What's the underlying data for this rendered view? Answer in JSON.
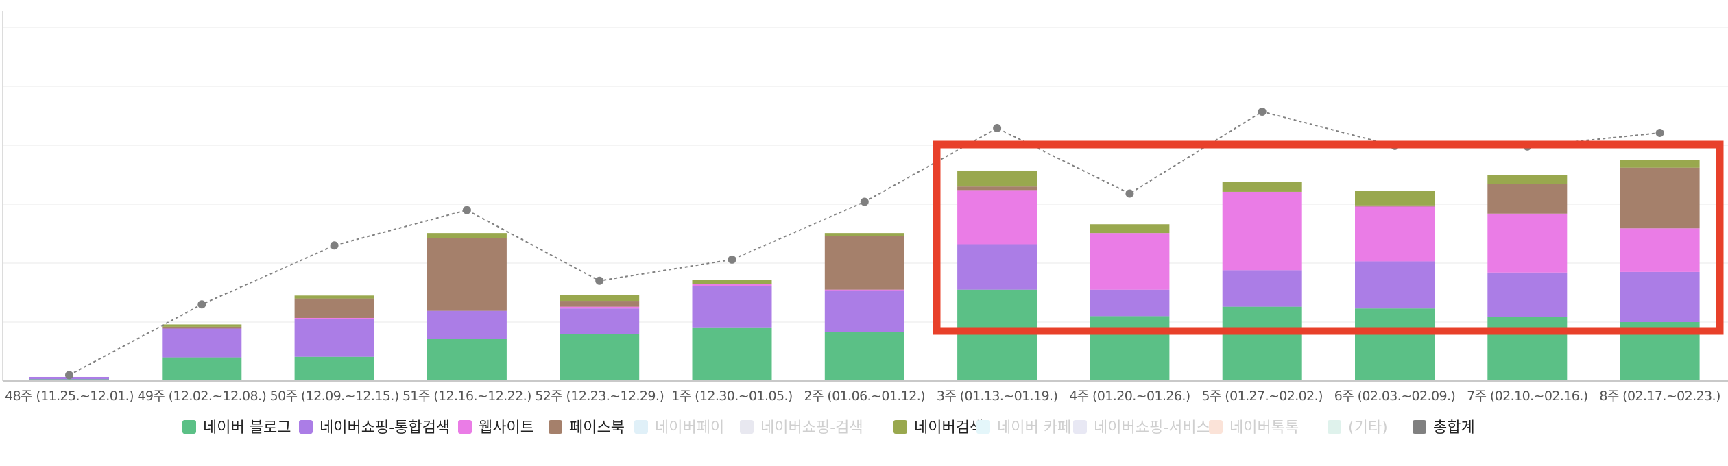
{
  "chart_data": {
    "type": "bar",
    "stacked": true,
    "categories": [
      "48주 (11.25.~12.01.)",
      "49주 (12.02.~12.08.)",
      "50주 (12.09.~12.15.)",
      "51주 (12.16.~12.22.)",
      "52주 (12.23.~12.29.)",
      "1주 (12.30.~01.05.)",
      "2주 (01.06.~01.12.)",
      "3주 (01.13.~01.19.)",
      "4주 (01.20.~01.26.)",
      "5주 (01.27.~02.02.)",
      "6주 (02.03.~02.09.)",
      "7주 (02.10.~02.16.)",
      "8주 (02.17.~02.23.)"
    ],
    "ylim": [
      0,
      6
    ],
    "grid": true,
    "legend_position": "bottom",
    "series": [
      {
        "name": "네이버 블로그",
        "color": "#5bc086",
        "active": true,
        "kind": "bar",
        "values": [
          0.03,
          0.4,
          0.41,
          0.72,
          0.8,
          0.91,
          0.83,
          1.55,
          1.1,
          1.26,
          1.23,
          1.09,
          1.0
        ]
      },
      {
        "name": "네이버쇼핑-통합검색",
        "color": "#ab7de6",
        "active": true,
        "kind": "bar",
        "values": [
          0.04,
          0.49,
          0.65,
          0.47,
          0.43,
          0.7,
          0.71,
          0.77,
          0.45,
          0.62,
          0.8,
          0.75,
          0.85
        ]
      },
      {
        "name": "웹사이트",
        "color": "#ea7ce6",
        "active": true,
        "kind": "bar",
        "values": [
          0.0,
          0.0,
          0.01,
          0.0,
          0.03,
          0.03,
          0.01,
          0.92,
          0.96,
          1.33,
          0.93,
          1.0,
          0.74
        ]
      },
      {
        "name": "페이스북",
        "color": "#a5806b",
        "active": true,
        "kind": "bar",
        "values": [
          0.0,
          0.03,
          0.33,
          1.24,
          0.1,
          0.0,
          0.91,
          0.06,
          0.0,
          0.0,
          0.02,
          0.5,
          1.03
        ]
      },
      {
        "name": "네이버페이",
        "color": "#e0f0f8",
        "active": false,
        "kind": "bar",
        "values": [
          0,
          0,
          0,
          0,
          0,
          0,
          0,
          0,
          0,
          0,
          0,
          0,
          0
        ]
      },
      {
        "name": "네이버쇼핑-검색",
        "color": "#e8e8f0",
        "active": false,
        "kind": "bar",
        "values": [
          0,
          0,
          0,
          0,
          0,
          0,
          0,
          0,
          0,
          0,
          0,
          0,
          0
        ]
      },
      {
        "name": "네이버검색",
        "color": "#99a84e",
        "active": true,
        "kind": "bar",
        "values": [
          0.0,
          0.04,
          0.05,
          0.08,
          0.1,
          0.08,
          0.05,
          0.27,
          0.15,
          0.17,
          0.25,
          0.16,
          0.13
        ]
      },
      {
        "name": "네이버 카페",
        "color": "#e4f6fa",
        "active": false,
        "kind": "bar",
        "values": [
          0,
          0,
          0,
          0,
          0,
          0,
          0,
          0,
          0,
          0,
          0,
          0,
          0
        ]
      },
      {
        "name": "네이버쇼핑-서비스",
        "color": "#e8e8f4",
        "active": false,
        "kind": "bar",
        "values": [
          0,
          0,
          0,
          0,
          0,
          0,
          0,
          0,
          0,
          0,
          0,
          0,
          0
        ]
      },
      {
        "name": "네이버톡톡",
        "color": "#fbe3d8",
        "active": false,
        "kind": "bar",
        "values": [
          0,
          0,
          0,
          0,
          0,
          0,
          0,
          0,
          0,
          0,
          0,
          0,
          0
        ]
      },
      {
        "name": "(기타)",
        "color": "#dff2ec",
        "active": false,
        "kind": "bar",
        "values": [
          0,
          0,
          0,
          0,
          0,
          0,
          0,
          0,
          0,
          0,
          0,
          0,
          0
        ]
      },
      {
        "name": "총합계",
        "color": "#808080",
        "active": true,
        "kind": "line",
        "values": [
          0.1,
          1.3,
          2.3,
          2.9,
          1.7,
          2.06,
          3.04,
          4.29,
          3.18,
          4.57,
          3.99,
          3.98,
          4.21
        ]
      }
    ]
  },
  "annotation": {
    "type": "highlight-box",
    "color": "#e8402a"
  },
  "legend_inactive_color": "#cfcfcf",
  "legend_active_text_color": "#222222"
}
